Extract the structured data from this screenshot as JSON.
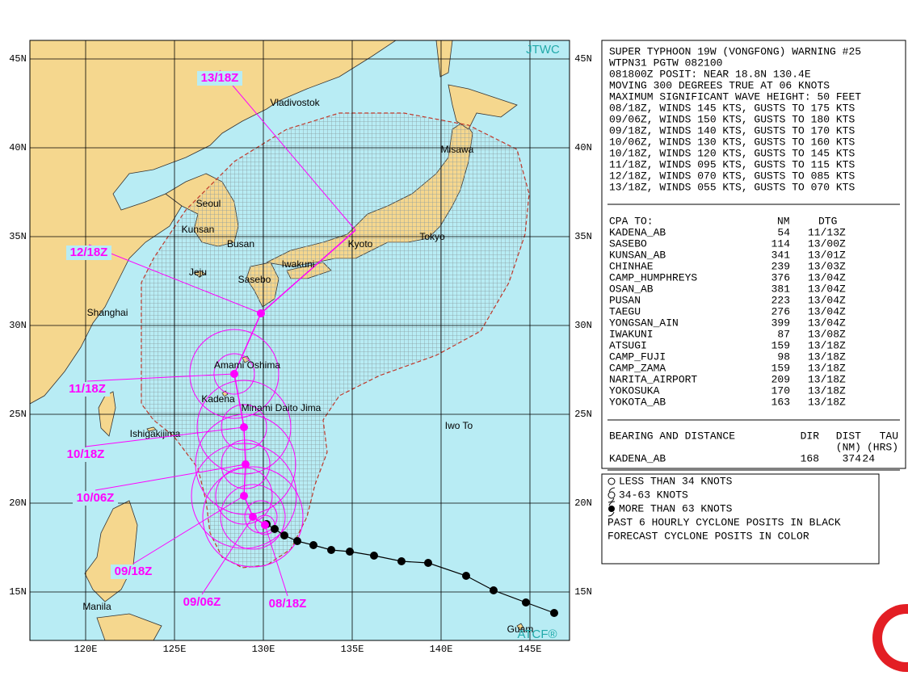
{
  "map": {
    "title_tag": "JTWC",
    "footer_tag": "ATCF®",
    "lat_ticks": [
      {
        "value": 45,
        "label": "45N"
      },
      {
        "value": 40,
        "label": "40N"
      },
      {
        "value": 35,
        "label": "35N"
      },
      {
        "value": 30,
        "label": "30N"
      },
      {
        "value": 25,
        "label": "25N"
      },
      {
        "value": 20,
        "label": "20N"
      },
      {
        "value": 15,
        "label": "15N"
      }
    ],
    "lon_ticks": [
      {
        "value": 120,
        "label": "120E"
      },
      {
        "value": 125,
        "label": "125E"
      },
      {
        "value": 130,
        "label": "130E"
      },
      {
        "value": 135,
        "label": "135E"
      },
      {
        "value": 140,
        "label": "140E"
      },
      {
        "value": 145,
        "label": "145E"
      }
    ],
    "places": [
      "Vladivostok",
      "Misawa",
      "Seoul",
      "Kunsan",
      "Busan",
      "Kyoto",
      "Tokyo",
      "Iwakuni",
      "Jeju",
      "Sasebo",
      "Shanghai",
      "Amami Oshima",
      "Kadena",
      "Minami Daito Jima",
      "Ishigakijima",
      "Iwo To",
      "Manila",
      "Guam"
    ],
    "forecast_labels": [
      "08/18Z",
      "09/06Z",
      "09/18Z",
      "10/06Z",
      "10/18Z",
      "11/18Z",
      "12/18Z",
      "13/18Z"
    ]
  },
  "warning": {
    "lines": [
      "SUPER TYPHOON 19W (VONGFONG) WARNING #25",
      "WTPN31 PGTW 082100",
      "081800Z POSIT: NEAR 18.8N 130.4E",
      "MOVING 300 DEGREES TRUE AT 06 KNOTS",
      "MAXIMUM SIGNIFICANT WAVE HEIGHT: 50 FEET",
      "08/18Z, WINDS 145 KTS, GUSTS TO 175 KTS",
      "09/06Z, WINDS 150 KTS, GUSTS TO 180 KTS",
      "09/18Z, WINDS 140 KTS, GUSTS TO 170 KTS",
      "10/06Z, WINDS 130 KTS, GUSTS TO 160 KTS",
      "10/18Z, WINDS 120 KTS, GUSTS TO 145 KTS",
      "11/18Z, WINDS 095 KTS, GUSTS TO 115 KTS",
      "12/18Z, WINDS 070 KTS, GUSTS TO 085 KTS",
      "13/18Z, WINDS 055 KTS, GUSTS TO 070 KTS"
    ]
  },
  "cpa": {
    "headers": [
      "CPA TO:",
      "NM",
      "DTG"
    ],
    "rows": [
      [
        "KADENA_AB",
        54,
        "11/13Z"
      ],
      [
        "SASEBO",
        114,
        "13/00Z"
      ],
      [
        "KUNSAN_AB",
        341,
        "13/01Z"
      ],
      [
        "CHINHAE",
        239,
        "13/03Z"
      ],
      [
        "CAMP_HUMPHREYS",
        376,
        "13/04Z"
      ],
      [
        "OSAN_AB",
        381,
        "13/04Z"
      ],
      [
        "PUSAN",
        223,
        "13/04Z"
      ],
      [
        "TAEGU",
        276,
        "13/04Z"
      ],
      [
        "YONGSAN_AIN",
        399,
        "13/04Z"
      ],
      [
        "IWAKUNI",
        87,
        "13/08Z"
      ],
      [
        "ATSUGI",
        159,
        "13/18Z"
      ],
      [
        "CAMP_FUJI",
        98,
        "13/18Z"
      ],
      [
        "CAMP_ZAMA",
        159,
        "13/18Z"
      ],
      [
        "NARITA_AIRPORT",
        209,
        "13/18Z"
      ],
      [
        "YOKOSUKA",
        170,
        "13/18Z"
      ],
      [
        "YOKOTA_AB",
        163,
        "13/18Z"
      ]
    ]
  },
  "bearing": {
    "title": "BEARING AND DISTANCE",
    "headers": [
      "DIR",
      "DIST",
      "TAU"
    ],
    "subheaders": [
      "(NM)",
      "(HRS)"
    ],
    "row": [
      "KADENA_AB",
      168,
      374,
      24
    ]
  },
  "legend": {
    "items": [
      "LESS THAN 34 KNOTS",
      "34-63 KNOTS",
      "MORE THAN 63 KNOTS"
    ],
    "notes": [
      "PAST 6 HOURLY CYCLONE POSITS IN BLACK",
      "FORECAST CYCLONE POSITS IN COLOR"
    ]
  }
}
